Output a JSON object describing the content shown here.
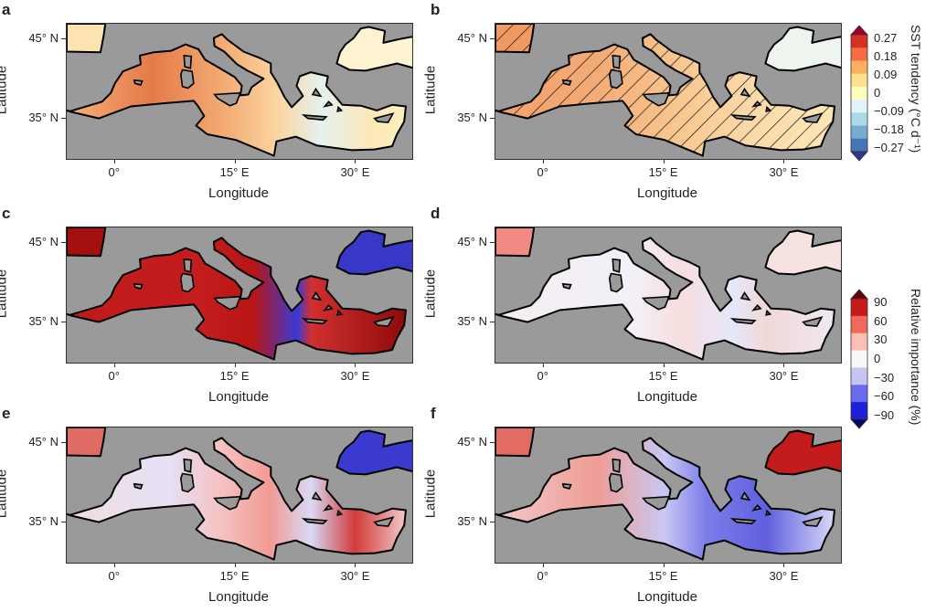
{
  "panels": [
    {
      "letter": "a",
      "field": "sst",
      "hatch": false
    },
    {
      "letter": "b",
      "field": "sst_b",
      "hatch": true
    },
    {
      "letter": "c",
      "field": "red"
    },
    {
      "letter": "d",
      "field": "light"
    },
    {
      "letter": "e",
      "field": "mixed"
    },
    {
      "letter": "f",
      "field": "blue_east"
    }
  ],
  "axes": {
    "xlabel": "Longitude",
    "ylabel": "Latitude",
    "lat_ticks": [
      "45° N",
      "35° N"
    ],
    "lon_ticks": [
      "0°",
      "15° E",
      "30° E"
    ]
  },
  "colorbar_sst": {
    "title": "SST tendency (°C d⁻¹)",
    "ticks": [
      "0.27",
      "0.18",
      "0.09",
      "0",
      "−0.09",
      "−0.18",
      "−0.27"
    ],
    "colors": [
      "#a50026",
      "#d73027",
      "#f46d43",
      "#fdae61",
      "#fee090",
      "#ffffbf",
      "#e0f3f8",
      "#abd9e9",
      "#74add1",
      "#4575b4",
      "#313695"
    ]
  },
  "colorbar_importance": {
    "title": "Relative importance (%)",
    "ticks": [
      "90",
      "60",
      "30",
      "0",
      "−30",
      "−60",
      "−90"
    ],
    "colors": [
      "#67000d",
      "#c51b1b",
      "#ef6a5a",
      "#fcbfb3",
      "#f7f7f7",
      "#c6c6f5",
      "#6b6bf0",
      "#1f1fd8",
      "#08086b"
    ]
  }
}
